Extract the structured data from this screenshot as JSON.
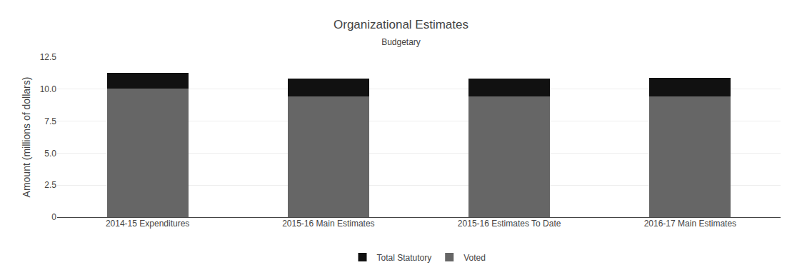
{
  "chart_data": {
    "type": "bar",
    "stacked": true,
    "title": "Organizational Estimates",
    "subtitle": "Budgetary",
    "ylabel": "Amount (millions of dollars)",
    "categories": [
      "2014-15 Expenditures",
      "2015-16 Main Estimates",
      "2015-16 Estimates To Date",
      "2016-17 Main Estimates"
    ],
    "series": [
      {
        "name": "Voted",
        "color": "#666666",
        "values": [
          10.02,
          9.41,
          9.41,
          9.42
        ]
      },
      {
        "name": "Total Statutory",
        "color": "#111111",
        "values": [
          1.28,
          1.42,
          1.4,
          1.47
        ]
      }
    ],
    "ylim": [
      0,
      12.5
    ],
    "yticks": [
      0,
      2.5,
      {
        "value": 5,
        "label": "5.0"
      },
      7.5,
      {
        "value": 10,
        "label": "10.0"
      },
      12.5
    ],
    "grid": true,
    "legend": "bottom"
  }
}
